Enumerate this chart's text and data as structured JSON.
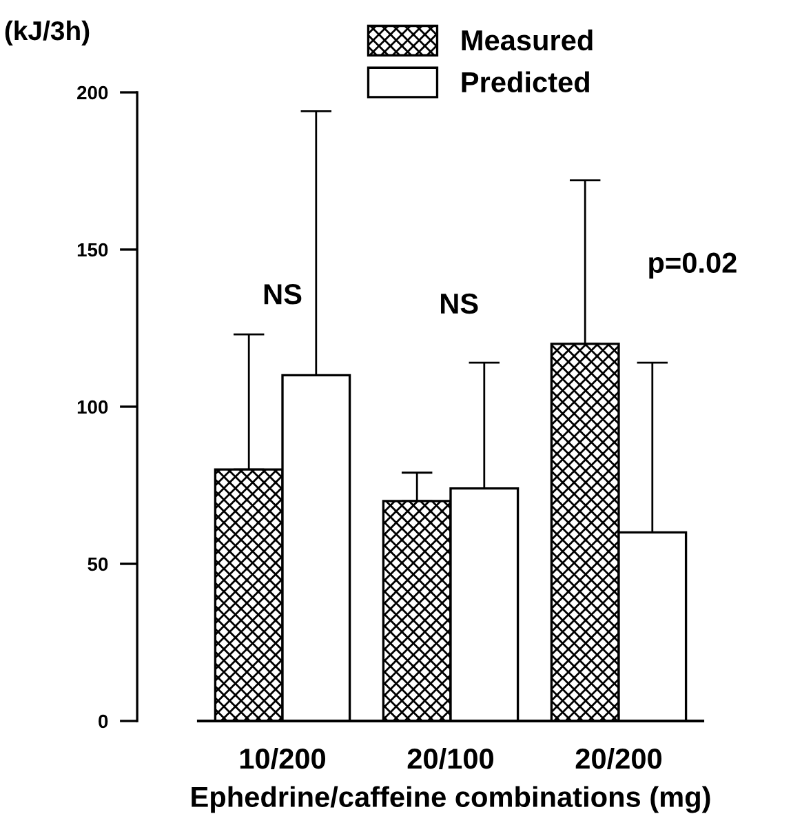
{
  "chart_data": {
    "type": "bar",
    "ylabel": "(kJ/3h)",
    "xlabel": "Ephedrine/caffeine combinations (mg)",
    "categories": [
      "10/200",
      "20/100",
      "20/200"
    ],
    "series": [
      {
        "name": "Measured",
        "color": "#000000",
        "values": [
          80,
          70,
          120
        ],
        "errors": [
          [
            80,
            123
          ],
          [
            70,
            79
          ],
          [
            120,
            172
          ]
        ]
      },
      {
        "name": "Predicted",
        "color": "#ffffff",
        "values": [
          110,
          74,
          60
        ],
        "errors": [
          [
            110,
            194
          ],
          [
            74,
            114
          ],
          [
            60,
            114
          ]
        ]
      }
    ],
    "ylim": [
      0,
      200
    ],
    "yticks": [
      0,
      50,
      100,
      150,
      200
    ],
    "grid": false,
    "legend": "top",
    "annotations": [
      "NS",
      "NS",
      "p=0.02"
    ]
  }
}
